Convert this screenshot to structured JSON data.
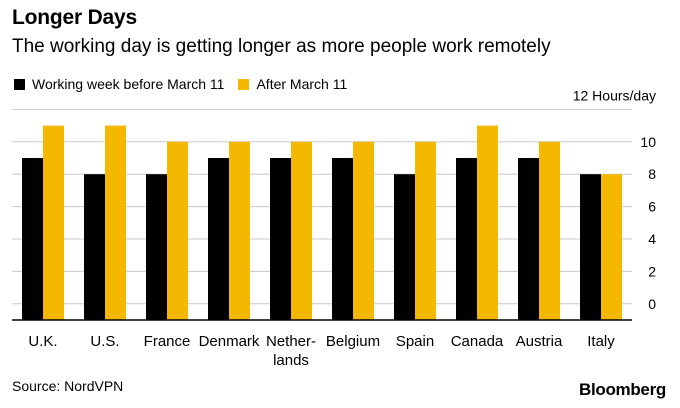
{
  "header": {
    "title": "Longer Days",
    "subtitle": "The working day is getting longer as more people work remotely"
  },
  "footer": {
    "source": "Source: NordVPN",
    "brand": "Bloomberg"
  },
  "colors": {
    "before": "#000000",
    "after": "#f5b800",
    "grid": "#c8c8c8",
    "axis": "#000000"
  },
  "chart_data": {
    "type": "bar",
    "title": "Longer Days",
    "subtitle": "The working day is getting longer as more people work remotely",
    "categories": [
      "U.K.",
      "U.S.",
      "France",
      "Denmark",
      "Netherlands",
      "Belgium",
      "Spain",
      "Canada",
      "Austria",
      "Italy"
    ],
    "category_labels": [
      [
        "U.K."
      ],
      [
        "U.S."
      ],
      [
        "France"
      ],
      [
        "Denmark"
      ],
      [
        "Nether-",
        "lands"
      ],
      [
        "Belgium"
      ],
      [
        "Spain"
      ],
      [
        "Canada"
      ],
      [
        "Austria"
      ],
      [
        "Italy"
      ]
    ],
    "series": [
      {
        "name": "Working week before March 11",
        "values": [
          9,
          8,
          8,
          9,
          9,
          9,
          8,
          9,
          9,
          8
        ]
      },
      {
        "name": "After March 11",
        "values": [
          11,
          11,
          10,
          10,
          10,
          10,
          10,
          11,
          10,
          8
        ]
      }
    ],
    "yaxis": {
      "unit_label": "12 Hours/day",
      "ticks": [
        0,
        2,
        4,
        6,
        8,
        10
      ],
      "side": "right"
    },
    "ylim": [
      -1,
      12
    ],
    "grid": true,
    "legend_position": "top-left"
  }
}
